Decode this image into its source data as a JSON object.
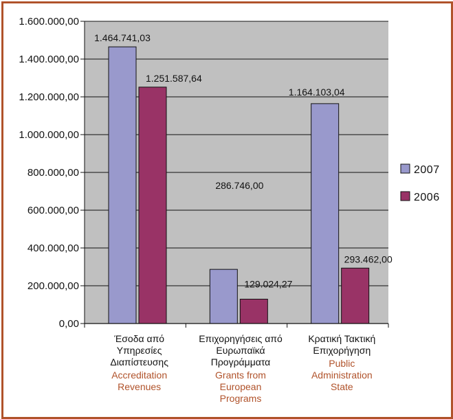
{
  "colors": {
    "frame": "#b0522a",
    "plot_bg": "#c0c0c0",
    "series_2007": "#9999cc",
    "series_2006": "#993366",
    "english_label": "#b0522a"
  },
  "chart_data": {
    "type": "bar",
    "categories": [
      {
        "greek": [
          "Έσοδα από",
          "Υπηρεσίες",
          "Διαπίστευσης"
        ],
        "english": [
          "Accreditation",
          "Revenues"
        ]
      },
      {
        "greek": [
          "Επιχορηγήσεις από",
          "Ευρωπαϊκά",
          "Προγράμματα"
        ],
        "english": [
          "Grants from",
          "European",
          "Programs"
        ]
      },
      {
        "greek": [
          "Κρατική Τακτική",
          "Επιχορήγηση"
        ],
        "english": [
          "Public",
          "Administration",
          "State"
        ]
      }
    ],
    "series": [
      {
        "name": "2007",
        "values": [
          1464741.03,
          286746.0,
          1164103.04
        ],
        "labels": [
          "1.464.741,03",
          "286.746,00",
          "1.164.103,04"
        ]
      },
      {
        "name": "2006",
        "values": [
          1251587.64,
          129024.27,
          293462.0
        ],
        "labels": [
          "1.251.587,64",
          "129.024,27",
          "293.462,00"
        ]
      }
    ],
    "ylim": [
      0,
      1600000
    ],
    "yticks": [
      {
        "value": 0,
        "label": "0,00"
      },
      {
        "value": 200000,
        "label": "200.000,00"
      },
      {
        "value": 400000,
        "label": "400.000,00"
      },
      {
        "value": 600000,
        "label": "600.000,00"
      },
      {
        "value": 800000,
        "label": "800.000,00"
      },
      {
        "value": 1000000,
        "label": "1.000.000,00"
      },
      {
        "value": 1200000,
        "label": "1.200.000,00"
      },
      {
        "value": 1400000,
        "label": "1.400.000,00"
      },
      {
        "value": 1600000,
        "label": "1.600.000,00"
      }
    ],
    "grid": true,
    "legend_position": "right"
  }
}
